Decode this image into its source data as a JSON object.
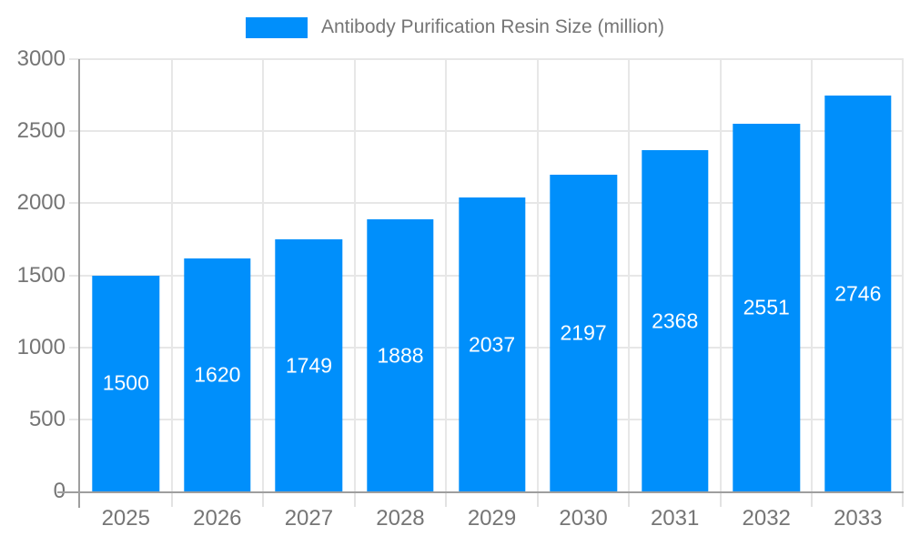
{
  "chart_data": {
    "type": "bar",
    "title": "Antibody Purification Resin Size (million)",
    "categories": [
      "2025",
      "2026",
      "2027",
      "2028",
      "2029",
      "2030",
      "2031",
      "2032",
      "2033"
    ],
    "values": [
      1500,
      1620,
      1749,
      1888,
      2037,
      2197,
      2368,
      2551,
      2746
    ],
    "xlabel": "",
    "ylabel": "",
    "ylim": [
      0,
      3000
    ],
    "y_ticks": [
      0,
      500,
      1000,
      1500,
      2000,
      2500,
      3000
    ],
    "grid": true,
    "legend_position": "top",
    "value_labels": "inside-center",
    "colors": {
      "bar": "#008FFB",
      "axis_label": "#757575",
      "gridline": "#e7e7e7",
      "axis_line": "#9e9e9e",
      "value_label": "#ffffff",
      "background": "#ffffff"
    }
  }
}
